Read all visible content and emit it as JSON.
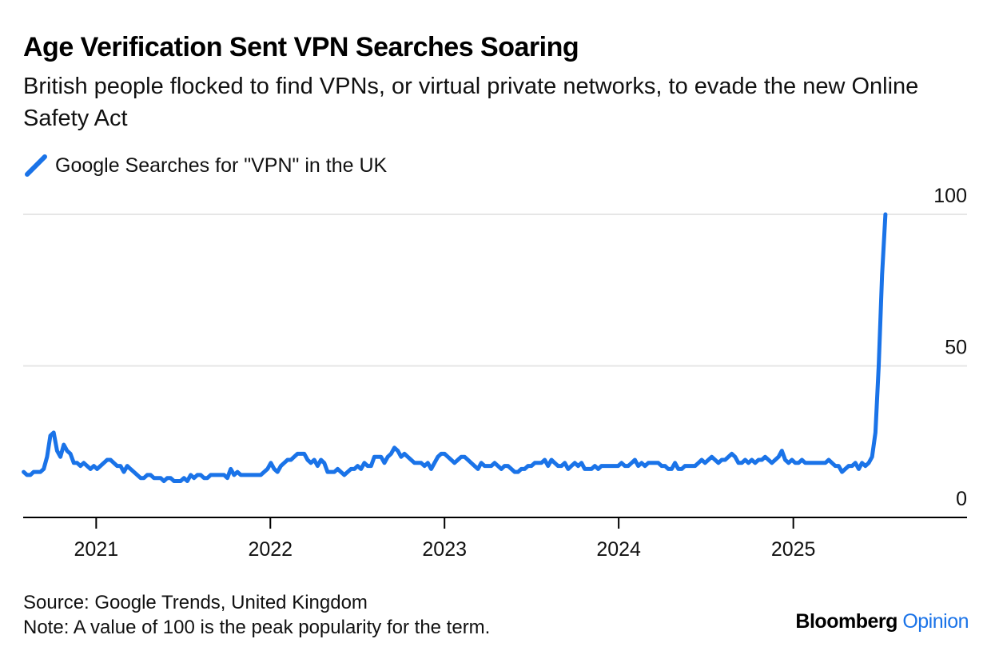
{
  "title": "Age Verification Sent VPN Searches Soaring",
  "subtitle": "British people flocked to find VPNs, or virtual private networks, to evade the new Online Safety Act",
  "source": "Source: Google Trends, United Kingdom",
  "note": "Note: A value of 100 is the peak popularity for the term.",
  "brand": {
    "name": "Bloomberg",
    "section": "Opinion"
  },
  "colors": {
    "line": "#1a73e8",
    "grid": "#e6e6e6",
    "axis": "#000000"
  },
  "chart_data": {
    "type": "line",
    "title": "Age Verification Sent VPN Searches Soaring",
    "subtitle": "British people flocked to find VPNs, or virtual private networks, to evade the new Online Safety Act",
    "xlabel": "",
    "ylabel": "",
    "xlim": [
      "2020-08-01",
      "2025-12-31"
    ],
    "ylim": [
      0,
      100
    ],
    "yticks": [
      0,
      50,
      100
    ],
    "xticks": [
      "2021",
      "2022",
      "2023",
      "2024",
      "2025"
    ],
    "grid": true,
    "legend_position": "top-left",
    "series": [
      {
        "name": "Google Searches for \"VPN\" in the UK",
        "color": "#1a73e8",
        "points": [
          [
            "2020-08-02",
            15
          ],
          [
            "2020-08-09",
            14
          ],
          [
            "2020-08-16",
            14
          ],
          [
            "2020-08-23",
            15
          ],
          [
            "2020-08-30",
            15
          ],
          [
            "2020-09-06",
            15
          ],
          [
            "2020-09-13",
            16
          ],
          [
            "2020-09-20",
            20
          ],
          [
            "2020-09-27",
            27
          ],
          [
            "2020-10-04",
            28
          ],
          [
            "2020-10-11",
            22
          ],
          [
            "2020-10-18",
            20
          ],
          [
            "2020-10-25",
            24
          ],
          [
            "2020-11-01",
            22
          ],
          [
            "2020-11-08",
            21
          ],
          [
            "2020-11-15",
            18
          ],
          [
            "2020-11-22",
            18
          ],
          [
            "2020-11-29",
            17
          ],
          [
            "2020-12-06",
            18
          ],
          [
            "2020-12-13",
            17
          ],
          [
            "2020-12-20",
            16
          ],
          [
            "2020-12-27",
            17
          ],
          [
            "2021-01-03",
            16
          ],
          [
            "2021-01-10",
            17
          ],
          [
            "2021-01-17",
            18
          ],
          [
            "2021-01-24",
            19
          ],
          [
            "2021-01-31",
            19
          ],
          [
            "2021-02-07",
            18
          ],
          [
            "2021-02-14",
            17
          ],
          [
            "2021-02-21",
            17
          ],
          [
            "2021-02-28",
            15
          ],
          [
            "2021-03-07",
            17
          ],
          [
            "2021-03-14",
            16
          ],
          [
            "2021-03-21",
            15
          ],
          [
            "2021-03-28",
            14
          ],
          [
            "2021-04-04",
            13
          ],
          [
            "2021-04-11",
            13
          ],
          [
            "2021-04-18",
            14
          ],
          [
            "2021-04-25",
            14
          ],
          [
            "2021-05-02",
            13
          ],
          [
            "2021-05-09",
            13
          ],
          [
            "2021-05-16",
            13
          ],
          [
            "2021-05-23",
            12
          ],
          [
            "2021-05-30",
            13
          ],
          [
            "2021-06-06",
            13
          ],
          [
            "2021-06-13",
            12
          ],
          [
            "2021-06-20",
            12
          ],
          [
            "2021-06-27",
            12
          ],
          [
            "2021-07-04",
            13
          ],
          [
            "2021-07-11",
            12
          ],
          [
            "2021-07-18",
            14
          ],
          [
            "2021-07-25",
            13
          ],
          [
            "2021-08-01",
            14
          ],
          [
            "2021-08-08",
            14
          ],
          [
            "2021-08-15",
            13
          ],
          [
            "2021-08-22",
            13
          ],
          [
            "2021-08-29",
            14
          ],
          [
            "2021-09-05",
            14
          ],
          [
            "2021-09-12",
            14
          ],
          [
            "2021-09-19",
            14
          ],
          [
            "2021-09-26",
            14
          ],
          [
            "2021-10-03",
            13
          ],
          [
            "2021-10-10",
            16
          ],
          [
            "2021-10-17",
            14
          ],
          [
            "2021-10-24",
            15
          ],
          [
            "2021-10-31",
            14
          ],
          [
            "2021-11-07",
            14
          ],
          [
            "2021-11-14",
            14
          ],
          [
            "2021-11-21",
            14
          ],
          [
            "2021-11-28",
            14
          ],
          [
            "2021-12-05",
            14
          ],
          [
            "2021-12-12",
            14
          ],
          [
            "2021-12-19",
            15
          ],
          [
            "2021-12-26",
            16
          ],
          [
            "2022-01-02",
            18
          ],
          [
            "2022-01-09",
            16
          ],
          [
            "2022-01-16",
            15
          ],
          [
            "2022-01-23",
            17
          ],
          [
            "2022-01-30",
            18
          ],
          [
            "2022-02-06",
            19
          ],
          [
            "2022-02-13",
            19
          ],
          [
            "2022-02-20",
            20
          ],
          [
            "2022-02-27",
            21
          ],
          [
            "2022-03-06",
            21
          ],
          [
            "2022-03-13",
            21
          ],
          [
            "2022-03-20",
            19
          ],
          [
            "2022-03-27",
            18
          ],
          [
            "2022-04-03",
            19
          ],
          [
            "2022-04-10",
            17
          ],
          [
            "2022-04-17",
            19
          ],
          [
            "2022-04-24",
            18
          ],
          [
            "2022-05-01",
            15
          ],
          [
            "2022-05-08",
            15
          ],
          [
            "2022-05-15",
            15
          ],
          [
            "2022-05-22",
            16
          ],
          [
            "2022-05-29",
            15
          ],
          [
            "2022-06-05",
            14
          ],
          [
            "2022-06-12",
            15
          ],
          [
            "2022-06-19",
            16
          ],
          [
            "2022-06-26",
            16
          ],
          [
            "2022-07-03",
            17
          ],
          [
            "2022-07-10",
            16
          ],
          [
            "2022-07-17",
            18
          ],
          [
            "2022-07-24",
            17
          ],
          [
            "2022-07-31",
            17
          ],
          [
            "2022-08-07",
            20
          ],
          [
            "2022-08-14",
            20
          ],
          [
            "2022-08-21",
            20
          ],
          [
            "2022-08-28",
            18
          ],
          [
            "2022-09-04",
            20
          ],
          [
            "2022-09-11",
            21
          ],
          [
            "2022-09-18",
            23
          ],
          [
            "2022-09-25",
            22
          ],
          [
            "2022-10-02",
            20
          ],
          [
            "2022-10-09",
            21
          ],
          [
            "2022-10-16",
            20
          ],
          [
            "2022-10-23",
            19
          ],
          [
            "2022-10-30",
            18
          ],
          [
            "2022-11-06",
            18
          ],
          [
            "2022-11-13",
            18
          ],
          [
            "2022-11-20",
            17
          ],
          [
            "2022-11-27",
            18
          ],
          [
            "2022-12-04",
            16
          ],
          [
            "2022-12-11",
            18
          ],
          [
            "2022-12-18",
            20
          ],
          [
            "2022-12-25",
            21
          ],
          [
            "2023-01-01",
            21
          ],
          [
            "2023-01-08",
            20
          ],
          [
            "2023-01-15",
            19
          ],
          [
            "2023-01-22",
            18
          ],
          [
            "2023-01-29",
            19
          ],
          [
            "2023-02-05",
            20
          ],
          [
            "2023-02-12",
            20
          ],
          [
            "2023-02-19",
            19
          ],
          [
            "2023-02-26",
            18
          ],
          [
            "2023-03-05",
            17
          ],
          [
            "2023-03-12",
            16
          ],
          [
            "2023-03-19",
            18
          ],
          [
            "2023-03-26",
            17
          ],
          [
            "2023-04-02",
            17
          ],
          [
            "2023-04-09",
            17
          ],
          [
            "2023-04-16",
            18
          ],
          [
            "2023-04-23",
            17
          ],
          [
            "2023-04-30",
            16
          ],
          [
            "2023-05-07",
            17
          ],
          [
            "2023-05-14",
            17
          ],
          [
            "2023-05-21",
            16
          ],
          [
            "2023-05-28",
            15
          ],
          [
            "2023-06-04",
            15
          ],
          [
            "2023-06-11",
            16
          ],
          [
            "2023-06-18",
            16
          ],
          [
            "2023-06-25",
            17
          ],
          [
            "2023-07-02",
            17
          ],
          [
            "2023-07-09",
            18
          ],
          [
            "2023-07-16",
            18
          ],
          [
            "2023-07-23",
            18
          ],
          [
            "2023-07-30",
            19
          ],
          [
            "2023-08-06",
            17
          ],
          [
            "2023-08-13",
            19
          ],
          [
            "2023-08-20",
            18
          ],
          [
            "2023-08-27",
            17
          ],
          [
            "2023-09-03",
            17
          ],
          [
            "2023-09-10",
            18
          ],
          [
            "2023-09-17",
            16
          ],
          [
            "2023-09-24",
            17
          ],
          [
            "2023-10-01",
            18
          ],
          [
            "2023-10-08",
            17
          ],
          [
            "2023-10-15",
            18
          ],
          [
            "2023-10-22",
            16
          ],
          [
            "2023-10-29",
            16
          ],
          [
            "2023-11-05",
            16
          ],
          [
            "2023-11-12",
            17
          ],
          [
            "2023-11-19",
            16
          ],
          [
            "2023-11-26",
            17
          ],
          [
            "2023-12-03",
            17
          ],
          [
            "2023-12-10",
            17
          ],
          [
            "2023-12-17",
            17
          ],
          [
            "2023-12-24",
            17
          ],
          [
            "2023-12-31",
            17
          ],
          [
            "2024-01-07",
            18
          ],
          [
            "2024-01-14",
            17
          ],
          [
            "2024-01-21",
            17
          ],
          [
            "2024-01-28",
            18
          ],
          [
            "2024-02-04",
            19
          ],
          [
            "2024-02-11",
            17
          ],
          [
            "2024-02-18",
            18
          ],
          [
            "2024-02-25",
            17
          ],
          [
            "2024-03-03",
            18
          ],
          [
            "2024-03-10",
            18
          ],
          [
            "2024-03-17",
            18
          ],
          [
            "2024-03-24",
            18
          ],
          [
            "2024-03-31",
            17
          ],
          [
            "2024-04-07",
            17
          ],
          [
            "2024-04-14",
            16
          ],
          [
            "2024-04-21",
            16
          ],
          [
            "2024-04-28",
            18
          ],
          [
            "2024-05-05",
            16
          ],
          [
            "2024-05-12",
            16
          ],
          [
            "2024-05-19",
            17
          ],
          [
            "2024-05-26",
            17
          ],
          [
            "2024-06-02",
            17
          ],
          [
            "2024-06-09",
            17
          ],
          [
            "2024-06-16",
            18
          ],
          [
            "2024-06-23",
            19
          ],
          [
            "2024-06-30",
            18
          ],
          [
            "2024-07-07",
            19
          ],
          [
            "2024-07-14",
            20
          ],
          [
            "2024-07-21",
            19
          ],
          [
            "2024-07-28",
            18
          ],
          [
            "2024-08-04",
            19
          ],
          [
            "2024-08-11",
            19
          ],
          [
            "2024-08-18",
            20
          ],
          [
            "2024-08-25",
            21
          ],
          [
            "2024-09-01",
            20
          ],
          [
            "2024-09-08",
            18
          ],
          [
            "2024-09-15",
            18
          ],
          [
            "2024-09-22",
            19
          ],
          [
            "2024-09-29",
            18
          ],
          [
            "2024-10-06",
            19
          ],
          [
            "2024-10-13",
            18
          ],
          [
            "2024-10-20",
            19
          ],
          [
            "2024-10-27",
            19
          ],
          [
            "2024-11-03",
            20
          ],
          [
            "2024-11-10",
            19
          ],
          [
            "2024-11-17",
            18
          ],
          [
            "2024-11-24",
            19
          ],
          [
            "2024-12-01",
            20
          ],
          [
            "2024-12-08",
            22
          ],
          [
            "2024-12-15",
            19
          ],
          [
            "2024-12-22",
            18
          ],
          [
            "2024-12-29",
            19
          ],
          [
            "2025-01-05",
            18
          ],
          [
            "2025-01-12",
            18
          ],
          [
            "2025-01-19",
            19
          ],
          [
            "2025-01-26",
            18
          ],
          [
            "2025-02-02",
            18
          ],
          [
            "2025-02-09",
            18
          ],
          [
            "2025-02-16",
            18
          ],
          [
            "2025-02-23",
            18
          ],
          [
            "2025-03-02",
            18
          ],
          [
            "2025-03-09",
            18
          ],
          [
            "2025-03-16",
            19
          ],
          [
            "2025-03-23",
            18
          ],
          [
            "2025-03-30",
            17
          ],
          [
            "2025-04-06",
            17
          ],
          [
            "2025-04-13",
            15
          ],
          [
            "2025-04-20",
            16
          ],
          [
            "2025-04-27",
            17
          ],
          [
            "2025-05-04",
            17
          ],
          [
            "2025-05-11",
            18
          ],
          [
            "2025-05-18",
            16
          ],
          [
            "2025-05-25",
            18
          ],
          [
            "2025-06-01",
            17
          ],
          [
            "2025-06-08",
            18
          ],
          [
            "2025-06-15",
            20
          ],
          [
            "2025-06-22",
            28
          ],
          [
            "2025-06-29",
            50
          ],
          [
            "2025-07-06",
            80
          ],
          [
            "2025-07-13",
            100
          ]
        ]
      }
    ]
  }
}
